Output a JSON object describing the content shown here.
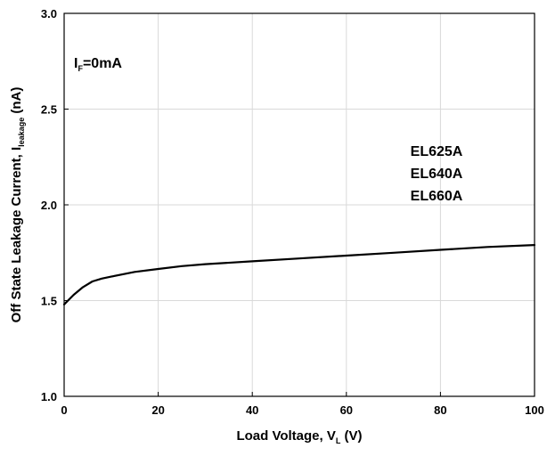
{
  "chart_data": {
    "type": "line",
    "title": "",
    "xlabel_main": "Load Voltage, V",
    "xlabel_sub": "L",
    "xlabel_unit": " (V)",
    "ylabel_main": "Off State Leakage Current, I",
    "ylabel_sub": "leakage",
    "ylabel_unit": " (nA)",
    "xlim": [
      0,
      100
    ],
    "ylim": [
      1.0,
      3.0
    ],
    "x_ticks": [
      0,
      20,
      40,
      60,
      80,
      100
    ],
    "x_tick_labels": [
      "0",
      "20",
      "40",
      "60",
      "80",
      "100"
    ],
    "y_ticks": [
      1.0,
      1.5,
      2.0,
      2.5,
      3.0
    ],
    "y_tick_labels": [
      "1.0",
      "1.5",
      "2.0",
      "2.5",
      "3.0"
    ],
    "grid": true,
    "condition_main": "I",
    "condition_sub": "F",
    "condition_value": "=0mA",
    "series": [
      {
        "name": "EL625A / EL640A / EL660A",
        "labels": [
          "EL625A",
          "EL640A",
          "EL660A"
        ],
        "color": "#000000",
        "x": [
          0,
          2,
          4,
          6,
          8,
          10,
          15,
          20,
          25,
          30,
          40,
          50,
          60,
          70,
          80,
          90,
          100
        ],
        "y": [
          1.48,
          1.53,
          1.57,
          1.6,
          1.615,
          1.625,
          1.65,
          1.665,
          1.68,
          1.69,
          1.705,
          1.72,
          1.735,
          1.75,
          1.765,
          1.78,
          1.79
        ]
      }
    ]
  }
}
